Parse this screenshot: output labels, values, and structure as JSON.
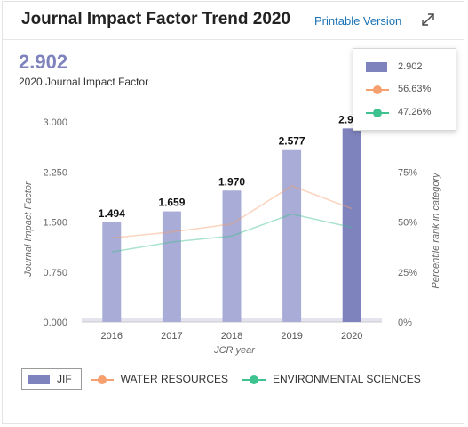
{
  "header": {
    "title": "Journal Impact Factor Trend 2020",
    "printable_label": "Printable Version",
    "expand_icon": "expand-arrows-icon"
  },
  "summary": {
    "value": "2.902",
    "caption": "2020 Journal Impact Factor"
  },
  "tooltip": {
    "jif": "2.902",
    "water_resources": "56.63%",
    "environmental_sciences": "47.26%"
  },
  "legend": {
    "jif": "JIF",
    "water_resources": "WATER RESOURCES",
    "environmental_sciences": "ENVIRONMENTAL SCIENCES"
  },
  "colors": {
    "bar": "#a9acd6",
    "bar_highlight": "#7f83bd",
    "water_resources": "#f5a06e",
    "environmental_sciences": "#3ec28f"
  },
  "chart_data": {
    "type": "bar",
    "categories": [
      "2016",
      "2017",
      "2018",
      "2019",
      "2020"
    ],
    "xlabel": "JCR year",
    "ylabel": "Journal Impact Factor",
    "y2label": "Percentile rank in category",
    "ylim": [
      0,
      3.0
    ],
    "yticks": [
      "0.000",
      "0.750",
      "1.500",
      "2.250",
      "3.000"
    ],
    "y2lim": [
      0,
      100
    ],
    "y2ticks": [
      "0%",
      "25%",
      "50%",
      "75%"
    ],
    "highlighted_category": "2020",
    "series": [
      {
        "name": "JIF",
        "axis": "left",
        "values": [
          1.494,
          1.659,
          1.97,
          2.577,
          2.902
        ],
        "labels": [
          "1.494",
          "1.659",
          "1.970",
          "2.577",
          "2.902"
        ]
      },
      {
        "name": "WATER RESOURCES",
        "axis": "right",
        "kind": "line",
        "values": [
          42,
          45,
          49,
          68,
          56.63
        ]
      },
      {
        "name": "ENVIRONMENTAL SCIENCES",
        "axis": "right",
        "kind": "line",
        "values": [
          35,
          40,
          43,
          54,
          47.26
        ]
      }
    ]
  }
}
